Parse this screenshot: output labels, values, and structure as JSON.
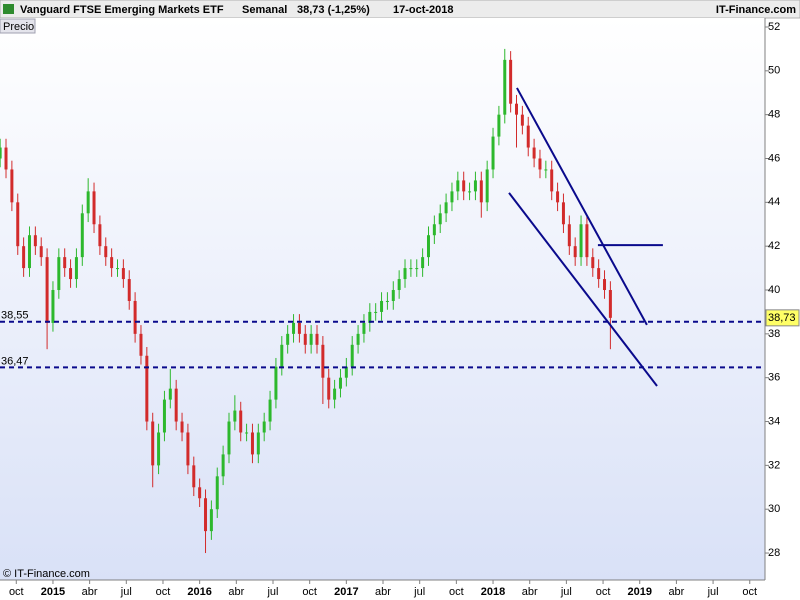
{
  "chart_data": {
    "type": "candlestick",
    "title": "Vanguard FTSE Emerging Markets ETF",
    "period": "Semanal",
    "price_info": "38,73 (-1,25%)",
    "date": "17-oct-2018",
    "source": "IT-Finance.com",
    "ylabel": "Precio",
    "copyright": "© IT-Finance.com",
    "colors": {
      "up": "#2db82d",
      "down": "#d22b2b",
      "lines": "#0a0a8c"
    },
    "x": [
      2014.64,
      2014.68,
      2014.72,
      2014.76,
      2014.8,
      2014.84,
      2014.88,
      2014.92,
      2014.96,
      2015.0,
      2015.04,
      2015.08,
      2015.12,
      2015.16,
      2015.2,
      2015.24,
      2015.28,
      2015.32,
      2015.36,
      2015.4,
      2015.44,
      2015.48,
      2015.52,
      2015.56,
      2015.6,
      2015.64,
      2015.68,
      2015.72,
      2015.76,
      2015.8,
      2015.84,
      2015.88,
      2015.92,
      2015.96,
      2016.0,
      2016.04,
      2016.08,
      2016.12,
      2016.16,
      2016.2,
      2016.24,
      2016.28,
      2016.32,
      2016.36,
      2016.4,
      2016.44,
      2016.48,
      2016.52,
      2016.56,
      2016.6,
      2016.64,
      2016.68,
      2016.72,
      2016.76,
      2016.8,
      2016.84,
      2016.88,
      2016.92,
      2016.96,
      2017.0,
      2017.04,
      2017.08,
      2017.12,
      2017.16,
      2017.2,
      2017.24,
      2017.28,
      2017.32,
      2017.36,
      2017.4,
      2017.44,
      2017.48,
      2017.52,
      2017.56,
      2017.6,
      2017.64,
      2017.68,
      2017.72,
      2017.76,
      2017.8,
      2017.84,
      2017.88,
      2017.92,
      2017.96,
      2018.0,
      2018.04,
      2018.08,
      2018.12,
      2018.16,
      2018.2,
      2018.24,
      2018.28,
      2018.32,
      2018.36,
      2018.4,
      2018.44,
      2018.48,
      2018.52,
      2018.56,
      2018.6,
      2018.64,
      2018.68,
      2018.72,
      2018.76,
      2018.8
    ],
    "open": [
      46.0,
      46.5,
      45.5,
      44,
      42,
      41,
      42.5,
      42,
      41.5,
      38.5,
      40,
      41.5,
      41,
      40.5,
      41.5,
      43.5,
      44.5,
      43,
      42,
      41.5,
      41,
      41,
      40.5,
      39.5,
      38,
      37,
      34,
      32,
      33.5,
      35,
      35.5,
      34,
      33.5,
      32,
      31,
      30.5,
      29,
      30,
      31.5,
      32.5,
      34,
      34.5,
      33.5,
      33.5,
      32.5,
      33.5,
      34,
      35,
      36.5,
      37.5,
      38,
      38.5,
      38,
      37.5,
      38,
      37.5,
      36,
      35,
      35.5,
      36,
      36.5,
      37.5,
      38,
      38.5,
      39,
      39,
      39.5,
      39.5,
      40,
      40.5,
      41,
      41,
      41,
      41.5,
      42.5,
      43,
      43.5,
      44,
      44.5,
      45,
      44.5,
      44.5,
      45,
      44,
      45.5,
      47,
      48,
      50.5,
      48.5,
      48,
      47.5,
      46.5,
      46,
      45.5,
      45.5,
      44.5,
      44,
      43,
      42,
      41.5,
      43,
      41.5,
      41,
      40.5,
      40
    ],
    "high": [
      46.9,
      46.9,
      45.9,
      44.4,
      42.4,
      42.9,
      42.9,
      42.4,
      41.9,
      40.4,
      41.9,
      41.9,
      41.4,
      41.9,
      43.9,
      45.1,
      44.9,
      43.4,
      42.4,
      41.9,
      41.4,
      41.4,
      40.9,
      39.9,
      38.4,
      37.4,
      34.4,
      33.9,
      35.4,
      36.4,
      35.9,
      34.4,
      33.9,
      32.4,
      31.4,
      30.9,
      30.4,
      31.9,
      32.9,
      34.4,
      35.2,
      34.9,
      33.9,
      33.9,
      33.9,
      34.4,
      35.4,
      36.9,
      37.9,
      38.4,
      38.9,
      38.9,
      38.4,
      38.4,
      38.4,
      37.9,
      36.4,
      35.9,
      36.4,
      36.9,
      37.9,
      38.4,
      38.9,
      39.4,
      39.4,
      39.9,
      39.9,
      40.4,
      40.9,
      41.4,
      41.4,
      41.4,
      41.9,
      42.9,
      43.4,
      43.9,
      44.4,
      44.9,
      45.4,
      45.4,
      44.9,
      45.4,
      45.4,
      45.9,
      47.4,
      48.4,
      51,
      50.9,
      48.9,
      48.4,
      47.9,
      46.9,
      46.4,
      45.9,
      45.9,
      44.9,
      44.4,
      43.4,
      42.4,
      43.4,
      43.4,
      41.9,
      41.4,
      40.9,
      40.4
    ],
    "low": [
      45.6,
      45.1,
      43.6,
      41.6,
      40.6,
      40.6,
      41.6,
      41.1,
      37.3,
      38.1,
      39.6,
      40.6,
      40.1,
      40.1,
      41.1,
      43.1,
      42.6,
      41.6,
      41.1,
      40.6,
      40.6,
      40.1,
      39.1,
      37.6,
      36.6,
      33.6,
      31,
      31.6,
      33.1,
      34.6,
      33.6,
      33.1,
      31.6,
      30.6,
      30.1,
      28,
      28.6,
      29.6,
      31.1,
      32.1,
      33.6,
      33.1,
      33.1,
      32.1,
      32.1,
      33.1,
      33.6,
      34.6,
      36.1,
      37.1,
      37.6,
      37.6,
      37.1,
      37.1,
      37.1,
      34.8,
      34.6,
      34.6,
      35.1,
      35.6,
      36.1,
      37.1,
      37.6,
      38.1,
      38.6,
      38.6,
      39.1,
      39.1,
      39.6,
      40.1,
      40.6,
      40.6,
      40.6,
      41.1,
      42.1,
      42.6,
      43.1,
      43.6,
      44.1,
      44.1,
      44.1,
      44.1,
      43.3,
      43.6,
      45.1,
      46.6,
      47.6,
      48.1,
      46.5,
      47.1,
      46.1,
      45.6,
      45.1,
      45.1,
      44.1,
      43.6,
      42.6,
      41.6,
      41.1,
      41.1,
      41.1,
      40.6,
      40.1,
      39.6,
      37.3
    ],
    "close": [
      46.5,
      45.5,
      44,
      42,
      41,
      42.5,
      42,
      41.5,
      38.5,
      40,
      41.5,
      41,
      40.5,
      41.5,
      43.5,
      44.5,
      43,
      42,
      41.5,
      41,
      41,
      40.5,
      39.5,
      38,
      37,
      34,
      32,
      33.5,
      35,
      35.5,
      34,
      33.5,
      32,
      31,
      30.5,
      29,
      30,
      31.5,
      32.5,
      34,
      34.5,
      33.5,
      33.5,
      32.5,
      33.5,
      34,
      35,
      36.5,
      37.5,
      38,
      38.5,
      38,
      37.5,
      38,
      37.5,
      36,
      35,
      35.5,
      36,
      36.5,
      37.5,
      38,
      38.5,
      39,
      39,
      39.5,
      39.5,
      40,
      40.5,
      41,
      41,
      41,
      41.5,
      42.5,
      43,
      43.5,
      44,
      44.5,
      45,
      44.5,
      44.5,
      45,
      44,
      45.5,
      47,
      48,
      50.5,
      48.5,
      48,
      47.5,
      46.5,
      46,
      45.5,
      45.5,
      44.5,
      44,
      43,
      42,
      41.5,
      43,
      41.5,
      41,
      40.5,
      40,
      38.73
    ],
    "last_price": {
      "value": 38.73,
      "label": "38,73"
    },
    "levels": [
      {
        "value": 38.55,
        "label": "38,55"
      },
      {
        "value": 36.47,
        "label": "36,47"
      }
    ],
    "trendlines": [
      {
        "x": [
          2018.163,
          2019.049
        ],
        "y": [
          49.22,
          38.41
        ]
      },
      {
        "x": [
          2018.109,
          2019.118
        ],
        "y": [
          44.43,
          35.62
        ]
      },
      {
        "x": [
          2018.715,
          2019.158
        ],
        "y": [
          42.05,
          42.05
        ]
      }
    ],
    "xlim": [
      2014.639,
      2019.854
    ],
    "ylim": [
      26.77,
      52.41
    ],
    "yticks": [
      28,
      30,
      32,
      34,
      36,
      38,
      40,
      42,
      44,
      46,
      48,
      50,
      52
    ],
    "xticks": [
      {
        "value": 2014.75,
        "label": "oct"
      },
      {
        "value": 2015,
        "label": "2015"
      },
      {
        "value": 2015.25,
        "label": "abr"
      },
      {
        "value": 2015.5,
        "label": "jul"
      },
      {
        "value": 2015.75,
        "label": "oct"
      },
      {
        "value": 2016,
        "label": "2016"
      },
      {
        "value": 2016.25,
        "label": "abr"
      },
      {
        "value": 2016.5,
        "label": "jul"
      },
      {
        "value": 2016.75,
        "label": "oct"
      },
      {
        "value": 2017,
        "label": "2017"
      },
      {
        "value": 2017.25,
        "label": "abr"
      },
      {
        "value": 2017.5,
        "label": "jul"
      },
      {
        "value": 2017.75,
        "label": "oct"
      },
      {
        "value": 2018,
        "label": "2018"
      },
      {
        "value": 2018.25,
        "label": "abr"
      },
      {
        "value": 2018.5,
        "label": "jul"
      },
      {
        "value": 2018.75,
        "label": "oct"
      },
      {
        "value": 2019,
        "label": "2019"
      },
      {
        "value": 2019.25,
        "label": "abr"
      },
      {
        "value": 2019.5,
        "label": "jul"
      },
      {
        "value": 2019.75,
        "label": "oct"
      }
    ],
    "grid": false
  }
}
